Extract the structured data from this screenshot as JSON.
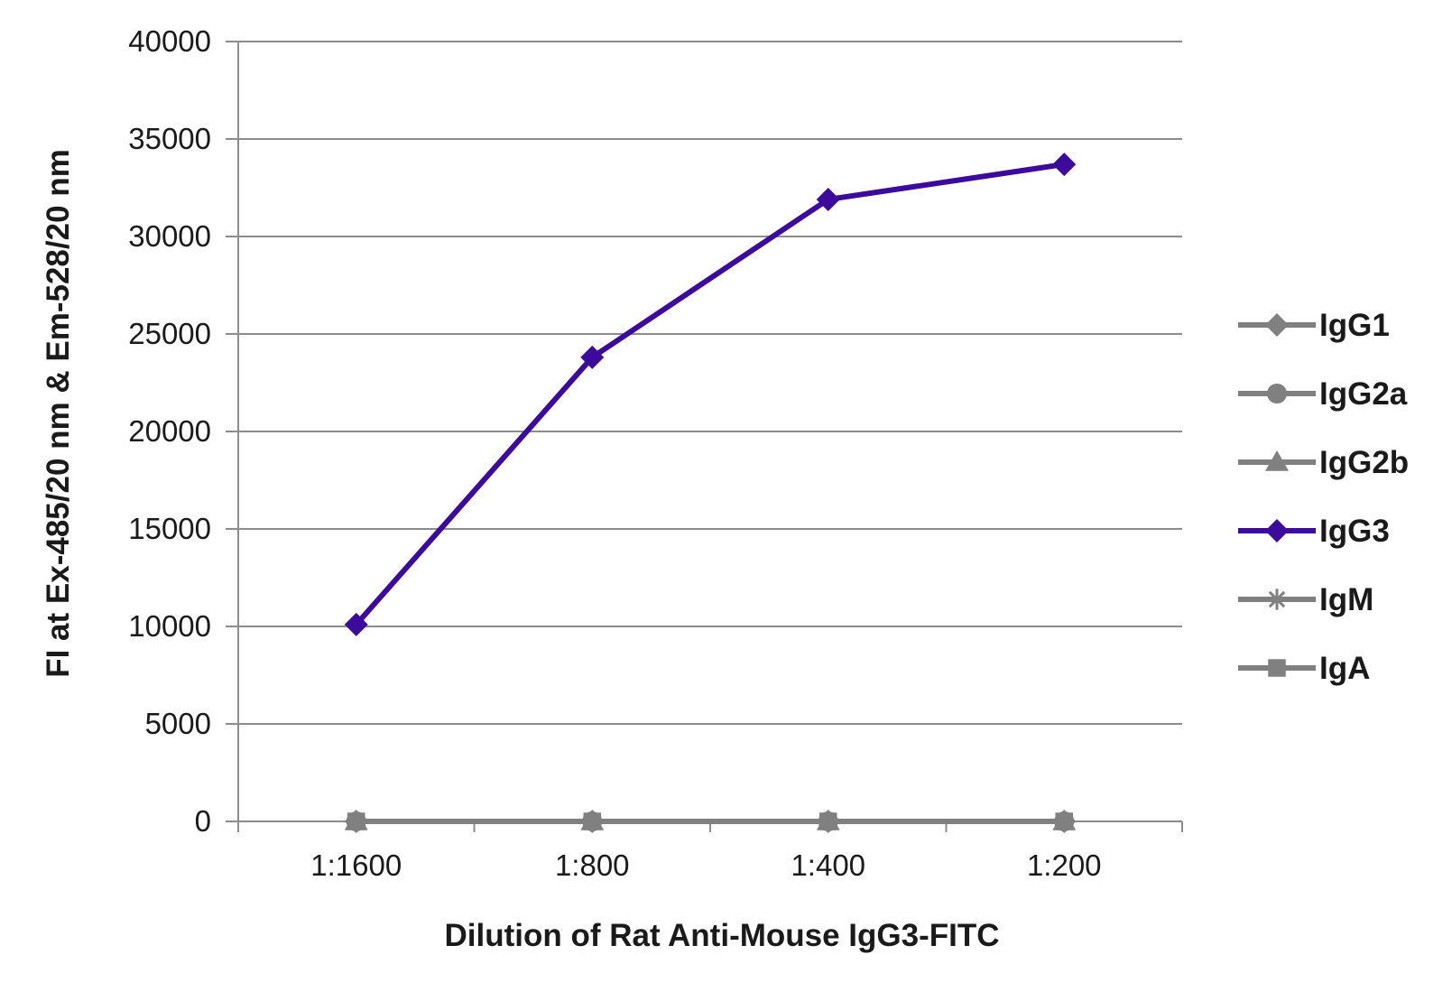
{
  "chart_data": {
    "type": "line",
    "xlabel": "Dilution of Rat Anti-Mouse IgG3-FITC",
    "ylabel": "FI at Ex-485/20 nm & Em-528/20 nm",
    "categories": [
      "1:1600",
      "1:800",
      "1:400",
      "1:200"
    ],
    "ylim": [
      0,
      40000
    ],
    "yticks": [
      0,
      5000,
      10000,
      15000,
      20000,
      25000,
      30000,
      35000,
      40000
    ],
    "grid": true,
    "legend_position": "right",
    "series": [
      {
        "name": "IgG1",
        "values": [
          0,
          0,
          0,
          0
        ],
        "color": "#808080",
        "marker": "diamond"
      },
      {
        "name": "IgG2a",
        "values": [
          0,
          0,
          0,
          0
        ],
        "color": "#808080",
        "marker": "circle"
      },
      {
        "name": "IgG2b",
        "values": [
          0,
          0,
          0,
          0
        ],
        "color": "#808080",
        "marker": "triangle"
      },
      {
        "name": "IgG3",
        "values": [
          10100,
          23800,
          31900,
          33700
        ],
        "color": "#3d0a9e",
        "marker": "diamond"
      },
      {
        "name": "IgM",
        "values": [
          0,
          0,
          0,
          0
        ],
        "color": "#808080",
        "marker": "star"
      },
      {
        "name": "IgA",
        "values": [
          0,
          0,
          0,
          0
        ],
        "color": "#808080",
        "marker": "square"
      }
    ]
  }
}
